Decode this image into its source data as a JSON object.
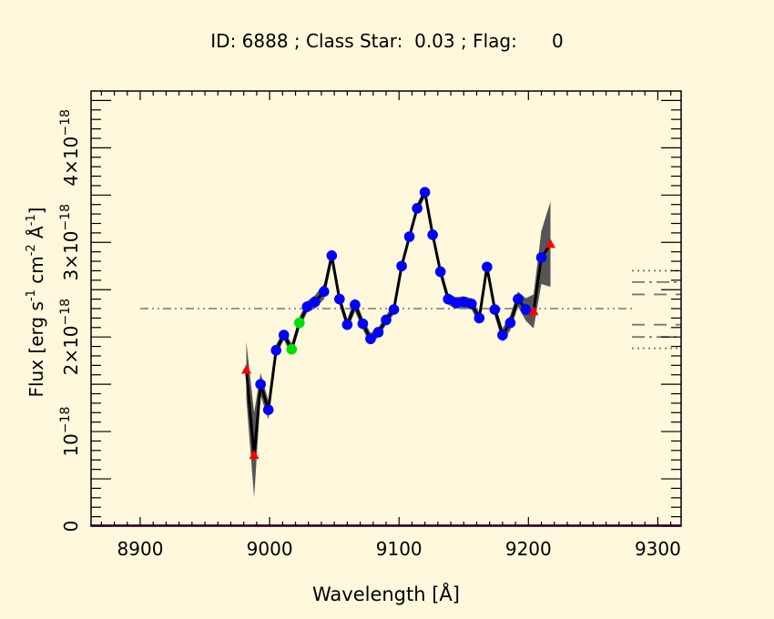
{
  "chart_data": {
    "type": "line",
    "title": "ID: 6888 ; Class Star:  0.03 ; Flag:      0",
    "xlabel": "Wavelength [Å]",
    "ylabel_parts": {
      "main": "Flux [erg s",
      "e1": "-1",
      "mid1": " cm",
      "e2": "-2",
      "mid2": " Å",
      "e3": "-1",
      "end": "]"
    },
    "xlim": [
      8862,
      9318
    ],
    "ylim": [
      0,
      4.6e-18
    ],
    "xticks": [
      {
        "value": 8900,
        "label": "8900"
      },
      {
        "value": 9000,
        "label": "9000"
      },
      {
        "value": 9100,
        "label": "9100"
      },
      {
        "value": 9200,
        "label": "9200"
      },
      {
        "value": 9300,
        "label": "9300"
      }
    ],
    "yticks": [
      {
        "value": 0,
        "mant": "0",
        "exp": ""
      },
      {
        "value": 1e-18,
        "mant": "10",
        "exp": "−18"
      },
      {
        "value": 2e-18,
        "mant": "2×10",
        "exp": "−18"
      },
      {
        "value": 3e-18,
        "mant": "3×10",
        "exp": "−18"
      },
      {
        "value": 4e-18,
        "mant": "4×10",
        "exp": "−18"
      }
    ],
    "continuum": {
      "value": 2.3e-18,
      "x": [
        8900,
        9280
      ]
    },
    "series": [
      {
        "x": [
          8982,
          8988,
          8993,
          8999,
          9005,
          9011,
          9017,
          9023,
          9029,
          9035,
          9042,
          9048,
          9054,
          9060,
          9066,
          9072,
          9078,
          9084,
          9090,
          9096,
          9102,
          9108,
          9114,
          9120,
          9126,
          9132,
          9138,
          9144,
          9150,
          9156,
          9162,
          9168,
          9174,
          9180,
          9186,
          9192,
          9198,
          9204,
          9210,
          9217
        ],
        "y": [
          1.65e-18,
          7.5e-19,
          1.5e-18,
          1.23e-18,
          1.86e-18,
          2.02e-18,
          1.87e-18,
          2.15e-18,
          2.32e-18,
          2.37e-18,
          2.48e-18,
          2.86e-18,
          2.4e-18,
          2.13e-18,
          2.34e-18,
          2.14e-18,
          1.98e-18,
          2.05e-18,
          2.18e-18,
          2.29e-18,
          2.75e-18,
          3.06e-18,
          3.36e-18,
          3.53e-18,
          3.08e-18,
          2.69e-18,
          2.4e-18,
          2.36e-18,
          2.37e-18,
          2.35e-18,
          2.2e-18,
          2.74e-18,
          2.29e-18,
          2.02e-18,
          2.15e-18,
          2.4e-18,
          2.29e-18,
          2.27e-18,
          2.84e-18,
          2.98e-18
        ],
        "err": [
          3e-19,
          4.5e-19,
          1.2e-19,
          1e-19,
          6e-20,
          5e-20,
          6e-20,
          6e-20,
          6e-20,
          7e-20,
          8e-20,
          7e-20,
          6e-20,
          6e-20,
          7e-20,
          6e-20,
          6e-20,
          5e-20,
          5e-20,
          5e-20,
          5e-20,
          5e-20,
          5e-20,
          5e-20,
          6e-20,
          6e-20,
          6e-20,
          6e-20,
          6e-20,
          6e-20,
          6e-20,
          6e-20,
          7e-20,
          7e-20,
          8e-20,
          8e-20,
          1.2e-19,
          1.8e-19,
          2.8e-19,
          4.5e-19
        ],
        "markers": [
          "triangle",
          "triangle",
          "circle",
          "circle",
          "circle",
          "circle",
          "circle-green",
          "circle-green",
          "circle",
          "circle",
          "circle",
          "circle",
          "circle",
          "circle",
          "circle",
          "circle",
          "circle",
          "circle",
          "circle",
          "circle",
          "circle",
          "circle",
          "circle",
          "circle",
          "circle",
          "circle",
          "circle",
          "circle",
          "circle",
          "circle",
          "circle",
          "circle",
          "circle",
          "circle",
          "circle",
          "circle",
          "circle",
          "triangle",
          "circle",
          "triangle"
        ]
      }
    ],
    "side_lines": [
      {
        "y": 2.7e-18,
        "style": "dot"
      },
      {
        "y": 2.58e-18,
        "style": "dashdot"
      },
      {
        "y": 2.45e-18,
        "style": "dash"
      },
      {
        "y": 2.13e-18,
        "style": "dash"
      },
      {
        "y": 2e-18,
        "style": "dashdot"
      },
      {
        "y": 1.88e-18,
        "style": "dot"
      }
    ],
    "colors": {
      "background": "#fff8dc",
      "band": "#555555",
      "line": "#000000",
      "point": "#0000ff",
      "point_alt": "#00e000",
      "flagged": "#ff0000",
      "continuum": "#777777",
      "baseline": "#800080"
    }
  }
}
